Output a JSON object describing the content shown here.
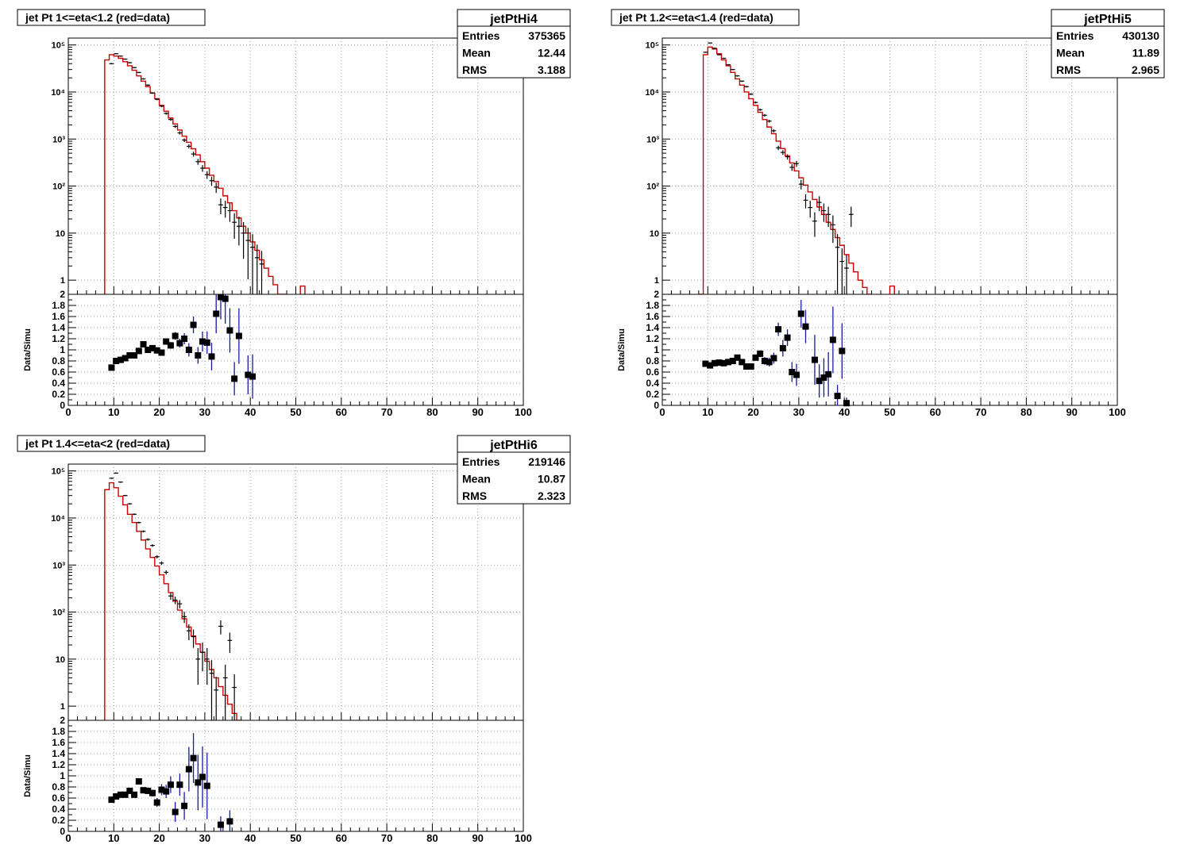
{
  "chart_data": [
    {
      "type": "histogram-ratio",
      "title": "jet Pt 1<=eta<1.2 (red=data)",
      "stats": {
        "name": "jetPtHi4",
        "entries": "375365",
        "mean": "12.44",
        "rms": "3.188"
      },
      "main": {
        "yscale": "log",
        "ylim": [
          0.5,
          140000
        ],
        "yticks": [
          "1",
          "10",
          "10²",
          "10³",
          "10⁴",
          "10⁵"
        ],
        "xlim": [
          0,
          100
        ],
        "grid": true,
        "red_histogram": {
          "bin_width": 1,
          "x_start": 8,
          "values": [
            48000,
            62000,
            58000,
            52000,
            44000,
            36000,
            29000,
            22000,
            17000,
            13000,
            9500,
            7200,
            5200,
            3900,
            2800,
            2100,
            1550,
            1150,
            850,
            620,
            460,
            330,
            240,
            170,
            125,
            90,
            62,
            44,
            30,
            21,
            14,
            10,
            6.5,
            4.3,
            2.7,
            1.8,
            1.2,
            0.8,
            0.5,
            0.3
          ]
        },
        "points": [
          [
            9,
            40000
          ],
          [
            10,
            65000
          ],
          [
            11,
            58000
          ],
          [
            12,
            50000
          ],
          [
            13,
            42000
          ],
          [
            14,
            33000
          ],
          [
            15,
            26000
          ],
          [
            16,
            19000
          ],
          [
            17,
            14000
          ],
          [
            18,
            9500
          ],
          [
            19,
            7000
          ],
          [
            20,
            5000
          ],
          [
            21,
            3500
          ],
          [
            22,
            2600
          ],
          [
            23,
            1850
          ],
          [
            24,
            1350
          ],
          [
            25,
            950
          ],
          [
            26,
            700
          ],
          [
            27,
            480
          ],
          [
            28,
            330
          ],
          [
            29,
            240
          ],
          [
            30,
            175
          ],
          [
            31,
            130
          ],
          [
            32,
            95
          ],
          [
            33,
            40
          ],
          [
            34,
            35
          ],
          [
            35,
            30
          ],
          [
            36,
            17
          ],
          [
            37,
            14
          ],
          [
            38,
            10
          ],
          [
            39,
            7
          ],
          [
            40,
            5
          ],
          [
            41,
            3
          ],
          [
            42,
            2.2
          ]
        ]
      },
      "ratio": {
        "ylabel": "Data/Simu",
        "ylim": [
          0,
          2
        ],
        "yticks": [
          "0",
          "0.2",
          "0.4",
          "0.6",
          "0.8",
          "1",
          "1.2",
          "1.4",
          "1.6",
          "1.8",
          "2"
        ],
        "xticks": [
          "0",
          "10",
          "20",
          "30",
          "40",
          "50",
          "60",
          "70",
          "80",
          "90",
          "100"
        ],
        "points": [
          [
            9,
            0.68,
            0.02
          ],
          [
            10,
            0.8,
            0.02
          ],
          [
            11,
            0.82,
            0.02
          ],
          [
            12,
            0.85,
            0.02
          ],
          [
            13,
            0.9,
            0.02
          ],
          [
            14,
            0.9,
            0.02
          ],
          [
            15,
            0.98,
            0.03
          ],
          [
            16,
            1.1,
            0.03
          ],
          [
            17,
            1.0,
            0.03
          ],
          [
            18,
            1.03,
            0.03
          ],
          [
            19,
            0.99,
            0.03
          ],
          [
            20,
            0.95,
            0.04
          ],
          [
            21,
            1.15,
            0.05
          ],
          [
            22,
            1.08,
            0.06
          ],
          [
            23,
            1.25,
            0.07
          ],
          [
            24,
            1.12,
            0.08
          ],
          [
            25,
            1.2,
            0.1
          ],
          [
            26,
            1.0,
            0.12
          ],
          [
            27,
            1.45,
            0.15
          ],
          [
            28,
            0.9,
            0.15
          ],
          [
            29,
            1.15,
            0.18
          ],
          [
            30,
            1.13,
            0.2
          ],
          [
            31,
            0.88,
            0.25
          ],
          [
            32,
            1.65,
            0.35
          ],
          [
            33,
            1.95,
            0.4
          ],
          [
            34,
            1.92,
            0.45
          ],
          [
            35,
            1.35,
            0.4
          ],
          [
            36,
            0.48,
            0.3
          ],
          [
            37,
            1.25,
            0.5
          ],
          [
            39,
            0.55,
            0.35
          ],
          [
            40,
            0.52,
            0.4
          ]
        ]
      }
    },
    {
      "type": "histogram-ratio",
      "title": "jet Pt 1.2<=eta<1.4 (red=data)",
      "stats": {
        "name": "jetPtHi5",
        "entries": "430130",
        "mean": "11.89",
        "rms": "2.965"
      },
      "main": {
        "yscale": "log",
        "ylim": [
          0.5,
          140000
        ],
        "yticks": [
          "1",
          "10",
          "10²",
          "10³",
          "10⁴",
          "10⁵"
        ],
        "xlim": [
          0,
          100
        ],
        "grid": true,
        "red_histogram": {
          "bin_width": 1,
          "x_start": 8,
          "values": [
            0.5,
            62000,
            90000,
            82000,
            65000,
            48000,
            36000,
            26000,
            19000,
            14000,
            10000,
            7200,
            5200,
            3700,
            2600,
            1800,
            1300,
            900,
            630,
            440,
            310,
            210,
            150,
            105,
            75,
            52,
            36,
            25,
            17,
            12,
            8,
            5.5,
            3.5,
            2.3,
            1.5,
            1,
            0.7,
            0.5
          ]
        },
        "points": [
          [
            9,
            70000
          ],
          [
            10,
            110000
          ],
          [
            11,
            85000
          ],
          [
            12,
            62000
          ],
          [
            13,
            52000
          ],
          [
            14,
            38000
          ],
          [
            15,
            30000
          ],
          [
            16,
            22000
          ],
          [
            17,
            17000
          ],
          [
            18,
            13000
          ],
          [
            19,
            9000
          ],
          [
            20,
            6000
          ],
          [
            21,
            4200
          ],
          [
            22,
            3200
          ],
          [
            23,
            2400
          ],
          [
            24,
            1500
          ],
          [
            25,
            650
          ],
          [
            26,
            520
          ],
          [
            27,
            420
          ],
          [
            28,
            250
          ],
          [
            29,
            300
          ],
          [
            30,
            110
          ],
          [
            31,
            50
          ],
          [
            32,
            35
          ],
          [
            33,
            18
          ],
          [
            34,
            45
          ],
          [
            35,
            30
          ],
          [
            36,
            25
          ],
          [
            37,
            15
          ],
          [
            38,
            5
          ],
          [
            39,
            2.5
          ],
          [
            40,
            1.8
          ],
          [
            41,
            25
          ]
        ]
      },
      "ratio": {
        "ylabel": "Data/Simu",
        "ylim": [
          0,
          2
        ],
        "yticks": [
          "0",
          "0.2",
          "0.4",
          "0.6",
          "0.8",
          "1",
          "1.2",
          "1.4",
          "1.6",
          "1.8",
          "2"
        ],
        "xticks": [
          "0",
          "10",
          "20",
          "30",
          "40",
          "50",
          "60",
          "70",
          "80",
          "90",
          "100"
        ],
        "points": [
          [
            9,
            0.75,
            0.02
          ],
          [
            10,
            0.72,
            0.02
          ],
          [
            11,
            0.76,
            0.02
          ],
          [
            12,
            0.77,
            0.02
          ],
          [
            13,
            0.76,
            0.02
          ],
          [
            14,
            0.78,
            0.02
          ],
          [
            15,
            0.8,
            0.03
          ],
          [
            16,
            0.86,
            0.03
          ],
          [
            17,
            0.78,
            0.03
          ],
          [
            18,
            0.7,
            0.04
          ],
          [
            19,
            0.7,
            0.04
          ],
          [
            20,
            0.86,
            0.05
          ],
          [
            21,
            0.93,
            0.06
          ],
          [
            22,
            0.8,
            0.07
          ],
          [
            23,
            0.78,
            0.08
          ],
          [
            24,
            0.85,
            0.1
          ],
          [
            25,
            1.37,
            0.12
          ],
          [
            26,
            1.03,
            0.15
          ],
          [
            27,
            1.22,
            0.15
          ],
          [
            28,
            0.6,
            0.18
          ],
          [
            29,
            0.55,
            0.2
          ],
          [
            30,
            1.65,
            0.25
          ],
          [
            31,
            1.42,
            0.3
          ],
          [
            33,
            0.82,
            0.45
          ],
          [
            34,
            0.44,
            0.3
          ],
          [
            35,
            0.5,
            0.35
          ],
          [
            36,
            0.56,
            0.4
          ],
          [
            37,
            1.18,
            0.6
          ],
          [
            38,
            0.17,
            0.2
          ],
          [
            39,
            0.98,
            0.5
          ],
          [
            40,
            0.04,
            0.1
          ]
        ]
      }
    },
    {
      "type": "histogram-ratio",
      "title": "jet Pt 1.4<=eta<2 (red=data)",
      "stats": {
        "name": "jetPtHi6",
        "entries": "219146",
        "mean": "10.87",
        "rms": "2.323"
      },
      "main": {
        "yscale": "log",
        "ylim": [
          0.5,
          140000
        ],
        "yticks": [
          "1",
          "10",
          "10²",
          "10³",
          "10⁴",
          "10⁵"
        ],
        "xlim": [
          0,
          100
        ],
        "grid": true,
        "red_histogram": {
          "bin_width": 1,
          "x_start": 8,
          "values": [
            40000,
            56000,
            44000,
            29000,
            19000,
            12000,
            8000,
            5200,
            3400,
            2200,
            1450,
            950,
            620,
            400,
            260,
            170,
            110,
            72,
            48,
            31,
            21,
            14,
            9,
            6,
            4,
            2.6,
            1.7,
            1.1,
            0.7,
            0.5
          ]
        },
        "points": [
          [
            9,
            70000
          ],
          [
            10,
            90000
          ],
          [
            11,
            58000
          ],
          [
            12,
            30000
          ],
          [
            13,
            20000
          ],
          [
            14,
            12000
          ],
          [
            15,
            8000
          ],
          [
            16,
            5200
          ],
          [
            17,
            3500
          ],
          [
            18,
            2600
          ],
          [
            19,
            1500
          ],
          [
            20,
            1100
          ],
          [
            21,
            700
          ],
          [
            22,
            220
          ],
          [
            23,
            180
          ],
          [
            24,
            150
          ],
          [
            25,
            80
          ],
          [
            26,
            40
          ],
          [
            27,
            30
          ],
          [
            28,
            10
          ],
          [
            29,
            14
          ],
          [
            30,
            10
          ],
          [
            31,
            5
          ],
          [
            32,
            2.2
          ],
          [
            33,
            50
          ],
          [
            34,
            4
          ],
          [
            35,
            25
          ],
          [
            36,
            2.5
          ]
        ]
      },
      "ratio": {
        "ylabel": "Data/Simu",
        "ylim": [
          0,
          2
        ],
        "yticks": [
          "0",
          "0.2",
          "0.4",
          "0.6",
          "0.8",
          "1",
          "1.2",
          "1.4",
          "1.6",
          "1.8",
          "2"
        ],
        "xticks": [
          "0",
          "10",
          "20",
          "30",
          "40",
          "50",
          "60",
          "70",
          "80",
          "90",
          "100"
        ],
        "points": [
          [
            9,
            0.57,
            0.02
          ],
          [
            10,
            0.63,
            0.02
          ],
          [
            11,
            0.66,
            0.02
          ],
          [
            12,
            0.66,
            0.02
          ],
          [
            13,
            0.73,
            0.03
          ],
          [
            14,
            0.66,
            0.03
          ],
          [
            15,
            0.9,
            0.04
          ],
          [
            16,
            0.74,
            0.05
          ],
          [
            17,
            0.73,
            0.05
          ],
          [
            18,
            0.69,
            0.06
          ],
          [
            19,
            0.52,
            0.08
          ],
          [
            20,
            0.75,
            0.1
          ],
          [
            21,
            0.72,
            0.12
          ],
          [
            22,
            0.84,
            0.15
          ],
          [
            23,
            0.35,
            0.18
          ],
          [
            24,
            0.84,
            0.2
          ],
          [
            25,
            0.46,
            0.25
          ],
          [
            26,
            1.12,
            0.4
          ],
          [
            27,
            1.32,
            0.45
          ],
          [
            28,
            0.88,
            0.5
          ],
          [
            29,
            0.98,
            0.55
          ],
          [
            30,
            0.82,
            0.6
          ],
          [
            33,
            0.12,
            0.15
          ],
          [
            35,
            0.18,
            0.2
          ]
        ]
      }
    }
  ]
}
